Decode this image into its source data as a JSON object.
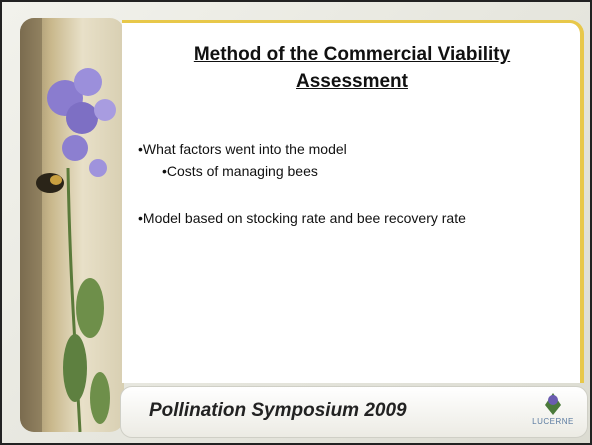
{
  "slide": {
    "title": "Method of the Commercial Viability Assessment",
    "bullets": [
      "•What factors went into the model",
      "•Costs of managing bees",
      "•Model based on stocking rate and bee recovery rate"
    ],
    "footer": "Pollination Symposium 2009",
    "logo": "LUCERNE"
  }
}
